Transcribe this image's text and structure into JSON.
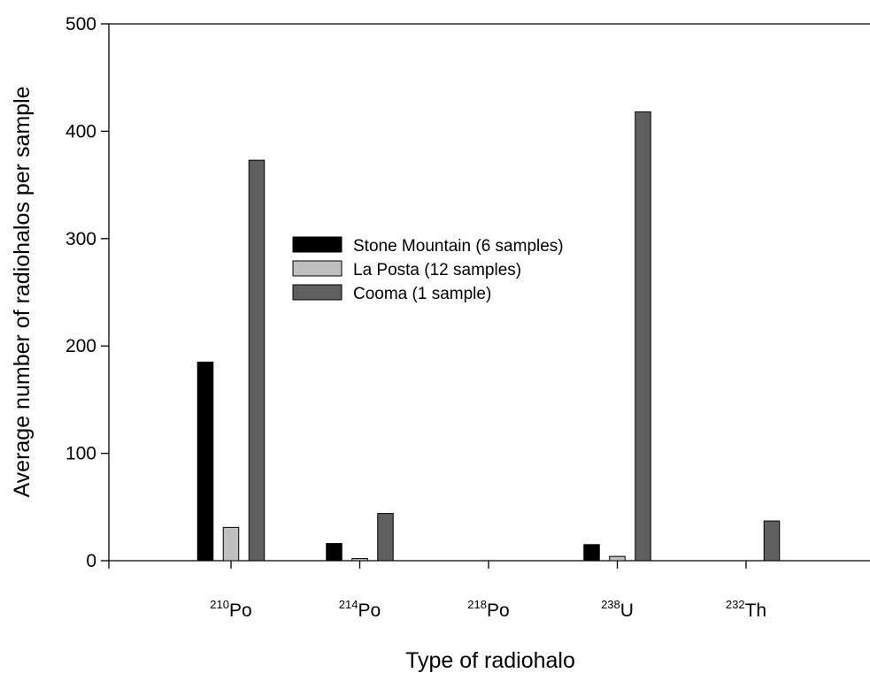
{
  "chart_data": {
    "type": "bar",
    "title": "",
    "xlabel": "Type of radiohalo",
    "ylabel": "Average number of radiohalos per sample",
    "ylim": [
      0,
      500
    ],
    "yticks": [
      0,
      100,
      200,
      300,
      400,
      500
    ],
    "grid": false,
    "legend_position": "center",
    "categories": [
      {
        "sup": "210",
        "base": "Po"
      },
      {
        "sup": "214",
        "base": "Po"
      },
      {
        "sup": "218",
        "base": "Po"
      },
      {
        "sup": "238",
        "base": "U"
      },
      {
        "sup": "232",
        "base": "Th"
      }
    ],
    "series": [
      {
        "name": "Stone Mountain (6 samples)",
        "color": "#000000",
        "values": [
          185,
          16,
          0,
          15,
          0
        ]
      },
      {
        "name": "La Posta (12 samples)",
        "color": "#c0c0c0",
        "values": [
          31,
          2,
          0,
          4,
          0
        ]
      },
      {
        "name": "Cooma (1 sample)",
        "color": "#5f5f5f",
        "values": [
          373,
          44,
          0,
          418,
          37
        ]
      }
    ]
  }
}
